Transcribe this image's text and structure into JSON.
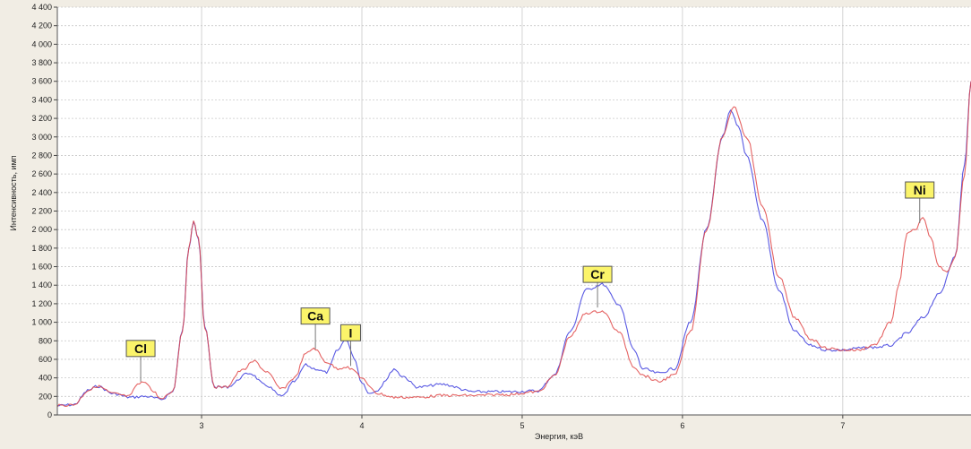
{
  "chart_data": {
    "type": "line",
    "title": "",
    "xlabel": "Энергия, кэВ",
    "ylabel": "Интенсивность, имп",
    "xlim": [
      2.1,
      7.8
    ],
    "ylim": [
      0,
      4400
    ],
    "x_ticks": [
      "3",
      "4",
      "5",
      "6",
      "7"
    ],
    "y_ticks": [
      "0",
      "200",
      "400",
      "600",
      "800",
      "1 000",
      "1 200",
      "1 400",
      "1 600",
      "1 800",
      "2 000",
      "2 200",
      "2 400",
      "2 600",
      "2 800",
      "3 000",
      "3 200",
      "3 400",
      "3 600",
      "3 800",
      "4 000",
      "4 200",
      "4 400"
    ],
    "grid": true,
    "series": [
      {
        "color": "#4848e0",
        "x": [
          2.1,
          2.2,
          2.3,
          2.35,
          2.45,
          2.55,
          2.65,
          2.75,
          2.82,
          2.88,
          2.92,
          2.95,
          2.98,
          3.02,
          3.08,
          3.15,
          3.3,
          3.4,
          3.5,
          3.58,
          3.65,
          3.7,
          3.78,
          3.85,
          3.9,
          3.95,
          4.0,
          4.05,
          4.1,
          4.15,
          4.2,
          4.25,
          4.35,
          4.5,
          4.7,
          4.9,
          5.1,
          5.2,
          5.3,
          5.4,
          5.5,
          5.6,
          5.7,
          5.75,
          5.85,
          5.95,
          6.05,
          6.15,
          6.25,
          6.3,
          6.35,
          6.4,
          6.5,
          6.6,
          6.7,
          6.8,
          6.9,
          7.0,
          7.1,
          7.2,
          7.3,
          7.4,
          7.5,
          7.6,
          7.7,
          7.76,
          7.8
        ],
        "values": [
          100,
          110,
          270,
          310,
          230,
          190,
          200,
          170,
          250,
          900,
          1800,
          2100,
          1900,
          950,
          300,
          300,
          450,
          320,
          200,
          360,
          540,
          500,
          460,
          700,
          820,
          620,
          350,
          230,
          270,
          380,
          500,
          420,
          300,
          330,
          250,
          250,
          260,
          430,
          900,
          1350,
          1410,
          1200,
          700,
          500,
          450,
          500,
          1000,
          2000,
          3000,
          3280,
          3100,
          2800,
          2100,
          1350,
          900,
          750,
          700,
          700,
          720,
          730,
          750,
          880,
          1050,
          1300,
          1700,
          2700,
          3600
        ]
      },
      {
        "color": "#e04848",
        "x": [
          2.1,
          2.2,
          2.3,
          2.35,
          2.45,
          2.55,
          2.6,
          2.65,
          2.7,
          2.75,
          2.82,
          2.88,
          2.92,
          2.95,
          2.98,
          3.02,
          3.08,
          3.15,
          3.25,
          3.33,
          3.4,
          3.5,
          3.58,
          3.65,
          3.7,
          3.78,
          3.85,
          3.9,
          3.95,
          4.0,
          4.05,
          4.1,
          4.2,
          4.35,
          4.5,
          4.7,
          4.9,
          5.1,
          5.2,
          5.3,
          5.4,
          5.5,
          5.6,
          5.7,
          5.75,
          5.85,
          5.95,
          6.05,
          6.15,
          6.25,
          6.32,
          6.4,
          6.5,
          6.6,
          6.7,
          6.8,
          6.9,
          7.0,
          7.1,
          7.2,
          7.3,
          7.35,
          7.4,
          7.45,
          7.5,
          7.55,
          7.6,
          7.65,
          7.7,
          7.76,
          7.8
        ],
        "values": [
          100,
          110,
          270,
          310,
          230,
          200,
          330,
          360,
          250,
          170,
          250,
          900,
          1800,
          2100,
          1900,
          950,
          300,
          300,
          480,
          580,
          470,
          280,
          400,
          660,
          720,
          570,
          500,
          520,
          480,
          400,
          300,
          230,
          190,
          190,
          210,
          210,
          220,
          250,
          420,
          850,
          1100,
          1120,
          900,
          520,
          430,
          360,
          430,
          900,
          2000,
          3000,
          3330,
          3000,
          2250,
          1500,
          1050,
          820,
          720,
          700,
          700,
          760,
          1000,
          1400,
          1950,
          2000,
          2120,
          1900,
          1600,
          1550,
          1700,
          2600,
          3600
        ]
      }
    ],
    "annotations": [
      {
        "label": "Cl",
        "x": 2.62,
        "y": 340
      },
      {
        "label": "Ca",
        "x": 3.71,
        "y": 690
      },
      {
        "label": "I",
        "x": 3.93,
        "y": 510
      },
      {
        "label": "Cr",
        "x": 5.47,
        "y": 1140
      },
      {
        "label": "Ni",
        "x": 7.48,
        "y": 2050
      }
    ],
    "colors": {
      "background": "#f1ede4",
      "plot_background": "#ffffff",
      "grid": "#c8c8c8",
      "label_fill": "#fbf46a",
      "label_stroke": "#555555"
    }
  }
}
